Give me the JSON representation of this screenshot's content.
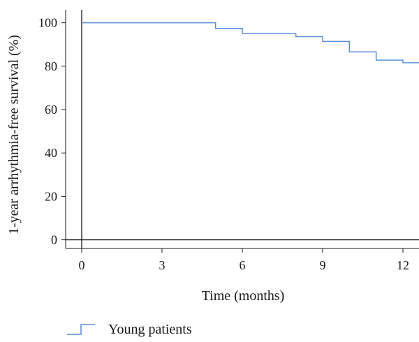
{
  "chart_data": {
    "type": "line",
    "subtype": "kaplan-meier-step",
    "xlabel": "Time (months)",
    "ylabel": "1-year arrhythmia-free survival (%)",
    "xlim": [
      -0.6,
      12.6
    ],
    "ylim": [
      -4,
      106
    ],
    "x_ticks": [
      0,
      3,
      6,
      9,
      12
    ],
    "y_ticks": [
      0,
      20,
      40,
      60,
      80,
      100
    ],
    "grid": false,
    "legend_position": "bottom-left",
    "series": [
      {
        "name": "Young patients",
        "color": "#5b8fd6",
        "step_x": [
          0,
          5,
          6,
          8,
          9,
          10,
          11,
          12,
          12.6
        ],
        "step_y": [
          100,
          97.4,
          95.0,
          93.6,
          91.4,
          86.6,
          82.8,
          81.6,
          81.6
        ]
      }
    ]
  }
}
